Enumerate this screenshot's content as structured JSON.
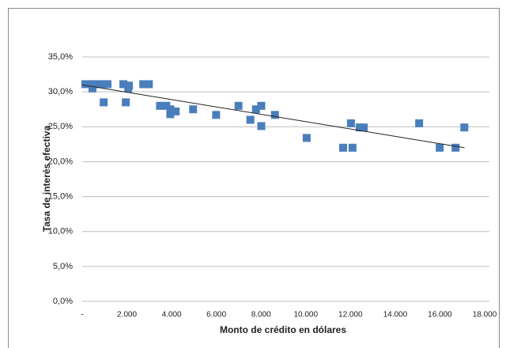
{
  "chart_data": {
    "type": "scatter",
    "xlabel": "Monto de crédito en dólares",
    "ylabel": "Tasa de interés efectiva",
    "xlim": [
      0,
      18000
    ],
    "ylim": [
      0,
      35
    ],
    "xticks": [
      {
        "value": 0,
        "label": "-"
      },
      {
        "value": 2000,
        "label": "2.000"
      },
      {
        "value": 4000,
        "label": "4.000"
      },
      {
        "value": 6000,
        "label": "6.000"
      },
      {
        "value": 8000,
        "label": "8.000"
      },
      {
        "value": 10000,
        "label": "10.000"
      },
      {
        "value": 12000,
        "label": "12.000"
      },
      {
        "value": 14000,
        "label": "14.000"
      },
      {
        "value": 16000,
        "label": "16.000"
      },
      {
        "value": 18000,
        "label": "18.000"
      }
    ],
    "yticks": [
      {
        "value": 0,
        "label": "0,0%"
      },
      {
        "value": 5,
        "label": "5,0%"
      },
      {
        "value": 10,
        "label": "10,0%"
      },
      {
        "value": 15,
        "label": "15,0%"
      },
      {
        "value": 20,
        "label": "20,0%"
      },
      {
        "value": 25,
        "label": "25,0%"
      },
      {
        "value": 30,
        "label": "30,0%"
      },
      {
        "value": 35,
        "label": "35,0%"
      }
    ],
    "grid": true,
    "color": "#4a7ebb",
    "x": [
      140,
      425,
      460,
      710,
      960,
      960,
      1130,
      1840,
      1950,
      2090,
      2060,
      2730,
      2980,
      3480,
      3760,
      3940,
      3940,
      4180,
      4960,
      5990,
      6990,
      7520,
      7770,
      8010,
      8010,
      8620,
      10040,
      11670,
      12020,
      12090,
      12410,
      12590,
      15070,
      15990,
      16700,
      17090
    ],
    "values": [
      31.1,
      31.1,
      30.5,
      31.1,
      31.1,
      28.5,
      31.1,
      31.1,
      28.5,
      30.9,
      30.5,
      31.1,
      31.1,
      28.0,
      28.0,
      27.5,
      26.8,
      27.2,
      27.5,
      26.7,
      28.0,
      26.0,
      27.5,
      28.0,
      25.1,
      26.7,
      23.4,
      22.0,
      25.5,
      22.0,
      24.9,
      24.9,
      25.5,
      22.0,
      22.0,
      24.9
    ],
    "trendline": {
      "color": "#222222",
      "x": [
        0,
        17100
      ],
      "values": [
        31.0,
        22.0
      ]
    }
  }
}
